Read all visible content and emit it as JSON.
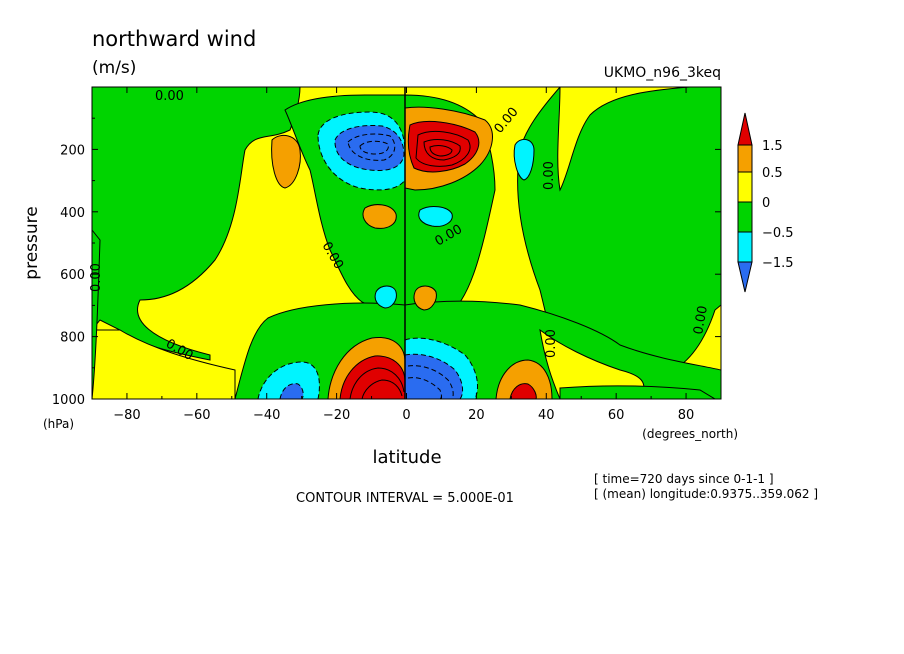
{
  "chart_data": {
    "type": "heatmap",
    "title": "northward wind",
    "units": "(m/s)",
    "dataset": "UKMO_n96_3keq",
    "xlabel": "latitude",
    "xunits": "(degrees_north)",
    "ylabel": "pressure",
    "yunits": "(hPa)",
    "xlim": [
      -90,
      90
    ],
    "ylim": [
      1000,
      0
    ],
    "xticks": [
      -80,
      -60,
      -40,
      -20,
      0,
      20,
      40,
      60,
      80
    ],
    "yticks": [
      200,
      400,
      600,
      800,
      1000
    ],
    "contour_levels": [
      -1.5,
      -0.5,
      0,
      0.5,
      1.5
    ],
    "level_colors": {
      "below_-1.5": "#2a6cf0",
      "-1.5_to_-0.5": "#00f4ff",
      "-0.5_to_0": "#00d400",
      "0_to_0.5": "#ffff00",
      "0.5_to_1.5": "#f5a000",
      "above_1.5": "#e00000"
    },
    "contour_label": "0.00",
    "contour_interval": "CONTOUR INTERVAL = 5.000E-01",
    "info_time": "[ time=720 days since 0-1-1 ]",
    "info_longitude": "[ (mean) longitude:0.9375..359.062 ]",
    "features": [
      {
        "name": "upper-cell-south",
        "lat": -8,
        "pressure": 220,
        "sign": "negative"
      },
      {
        "name": "upper-cell-north",
        "lat": 9,
        "pressure": 220,
        "sign": "positive"
      },
      {
        "name": "lower-cell-south",
        "lat": -9,
        "pressure": 960,
        "sign": "positive"
      },
      {
        "name": "lower-cell-north",
        "lat": 9,
        "pressure": 960,
        "sign": "negative"
      },
      {
        "name": "lower-cell-subtropic-south",
        "lat": -35,
        "pressure": 930,
        "sign": "negative"
      },
      {
        "name": "lower-cell-subtropic-north",
        "lat": 32,
        "pressure": 950,
        "sign": "positive"
      }
    ]
  }
}
